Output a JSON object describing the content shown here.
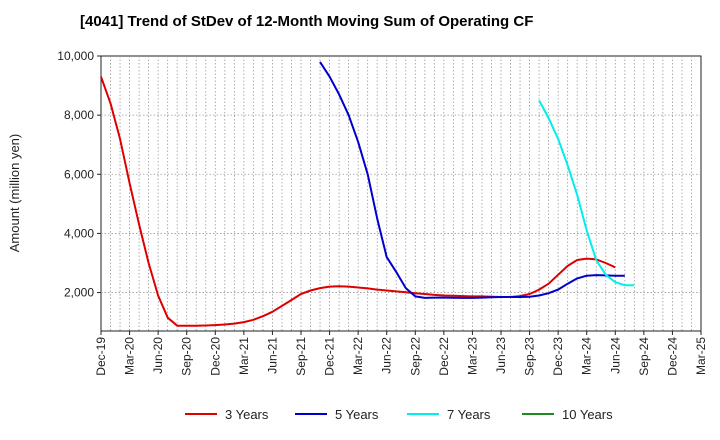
{
  "chart_data": {
    "type": "line",
    "title": "[4041]  Trend of StDev of 12-Month Moving Sum of Operating CF",
    "ylabel": "Amount (million yen)",
    "xlabel": "",
    "ylim": [
      700,
      10000
    ],
    "yticks": [
      2000,
      4000,
      6000,
      8000,
      10000
    ],
    "ytick_labels": [
      "2,000",
      "4,000",
      "6,000",
      "8,000",
      "10,000"
    ],
    "xticks": [
      "Dec-19",
      "Mar-20",
      "Jun-20",
      "Sep-20",
      "Dec-20",
      "Mar-21",
      "Jun-21",
      "Sep-21",
      "Dec-21",
      "Mar-22",
      "Jun-22",
      "Sep-22",
      "Dec-22",
      "Mar-23",
      "Jun-23",
      "Sep-23",
      "Dec-23",
      "Mar-24",
      "Jun-24",
      "Sep-24",
      "Dec-24",
      "Mar-25"
    ],
    "grid": true,
    "legend_position": "bottom",
    "series": [
      {
        "name": "3 Years",
        "color": "#dd0000",
        "points": [
          [
            "Dec-19",
            9300
          ],
          [
            "Jan-20",
            8400
          ],
          [
            "Feb-20",
            7200
          ],
          [
            "Mar-20",
            5700
          ],
          [
            "Apr-20",
            4300
          ],
          [
            "May-20",
            3000
          ],
          [
            "Jun-20",
            1900
          ],
          [
            "Jul-20",
            1150
          ],
          [
            "Aug-20",
            880
          ],
          [
            "Sep-20",
            880
          ],
          [
            "Oct-20",
            880
          ],
          [
            "Nov-20",
            885
          ],
          [
            "Dec-20",
            900
          ],
          [
            "Jan-21",
            920
          ],
          [
            "Feb-21",
            950
          ],
          [
            "Mar-21",
            1000
          ],
          [
            "Apr-21",
            1080
          ],
          [
            "May-21",
            1200
          ],
          [
            "Jun-21",
            1350
          ],
          [
            "Jul-21",
            1550
          ],
          [
            "Aug-21",
            1750
          ],
          [
            "Sep-21",
            1950
          ],
          [
            "Oct-21",
            2070
          ],
          [
            "Nov-21",
            2150
          ],
          [
            "Dec-21",
            2200
          ],
          [
            "Jan-22",
            2210
          ],
          [
            "Feb-22",
            2200
          ],
          [
            "Mar-22",
            2170
          ],
          [
            "Apr-22",
            2140
          ],
          [
            "May-22",
            2100
          ],
          [
            "Jun-22",
            2070
          ],
          [
            "Jul-22",
            2040
          ],
          [
            "Aug-22",
            2010
          ],
          [
            "Sep-22",
            1980
          ],
          [
            "Oct-22",
            1950
          ],
          [
            "Nov-22",
            1920
          ],
          [
            "Dec-22",
            1900
          ],
          [
            "Jan-23",
            1890
          ],
          [
            "Feb-23",
            1880
          ],
          [
            "Mar-23",
            1870
          ],
          [
            "Apr-23",
            1870
          ],
          [
            "May-23",
            1860
          ],
          [
            "Jun-23",
            1850
          ],
          [
            "Jul-23",
            1850
          ],
          [
            "Aug-23",
            1880
          ],
          [
            "Sep-23",
            1950
          ],
          [
            "Oct-23",
            2100
          ],
          [
            "Nov-23",
            2300
          ],
          [
            "Dec-23",
            2600
          ],
          [
            "Jan-24",
            2900
          ],
          [
            "Feb-24",
            3100
          ],
          [
            "Mar-24",
            3150
          ],
          [
            "Apr-24",
            3120
          ],
          [
            "May-24",
            3000
          ],
          [
            "Jun-24",
            2850
          ]
        ]
      },
      {
        "name": "5 Years",
        "color": "#0000cc",
        "points": [
          [
            "Nov-21",
            9800
          ],
          [
            "Dec-21",
            9300
          ],
          [
            "Jan-22",
            8700
          ],
          [
            "Feb-22",
            8000
          ],
          [
            "Mar-22",
            7100
          ],
          [
            "Apr-22",
            6000
          ],
          [
            "May-22",
            4500
          ],
          [
            "Jun-22",
            3200
          ],
          [
            "Jul-22",
            2700
          ],
          [
            "Aug-22",
            2150
          ],
          [
            "Sep-22",
            1870
          ],
          [
            "Oct-22",
            1820
          ],
          [
            "Nov-22",
            1830
          ],
          [
            "Dec-22",
            1830
          ],
          [
            "Jan-23",
            1825
          ],
          [
            "Feb-23",
            1820
          ],
          [
            "Mar-23",
            1820
          ],
          [
            "Apr-23",
            1830
          ],
          [
            "May-23",
            1840
          ],
          [
            "Jun-23",
            1850
          ],
          [
            "Jul-23",
            1850
          ],
          [
            "Aug-23",
            1850
          ],
          [
            "Sep-23",
            1860
          ],
          [
            "Oct-23",
            1900
          ],
          [
            "Nov-23",
            1980
          ],
          [
            "Dec-23",
            2100
          ],
          [
            "Jan-24",
            2300
          ],
          [
            "Feb-24",
            2480
          ],
          [
            "Mar-24",
            2570
          ],
          [
            "Apr-24",
            2590
          ],
          [
            "May-24",
            2580
          ],
          [
            "Jun-24",
            2570
          ],
          [
            "Jul-24",
            2570
          ]
        ]
      },
      {
        "name": "7 Years",
        "color": "#00eeee",
        "points": [
          [
            "Oct-23",
            8500
          ],
          [
            "Nov-23",
            7900
          ],
          [
            "Dec-23",
            7200
          ],
          [
            "Jan-24",
            6300
          ],
          [
            "Feb-24",
            5300
          ],
          [
            "Mar-24",
            4100
          ],
          [
            "Apr-24",
            3100
          ],
          [
            "May-24",
            2600
          ],
          [
            "Jun-24",
            2350
          ],
          [
            "Jul-24",
            2250
          ],
          [
            "Aug-24",
            2250
          ]
        ]
      },
      {
        "name": "10 Years",
        "color": "#228822",
        "points": []
      }
    ]
  }
}
